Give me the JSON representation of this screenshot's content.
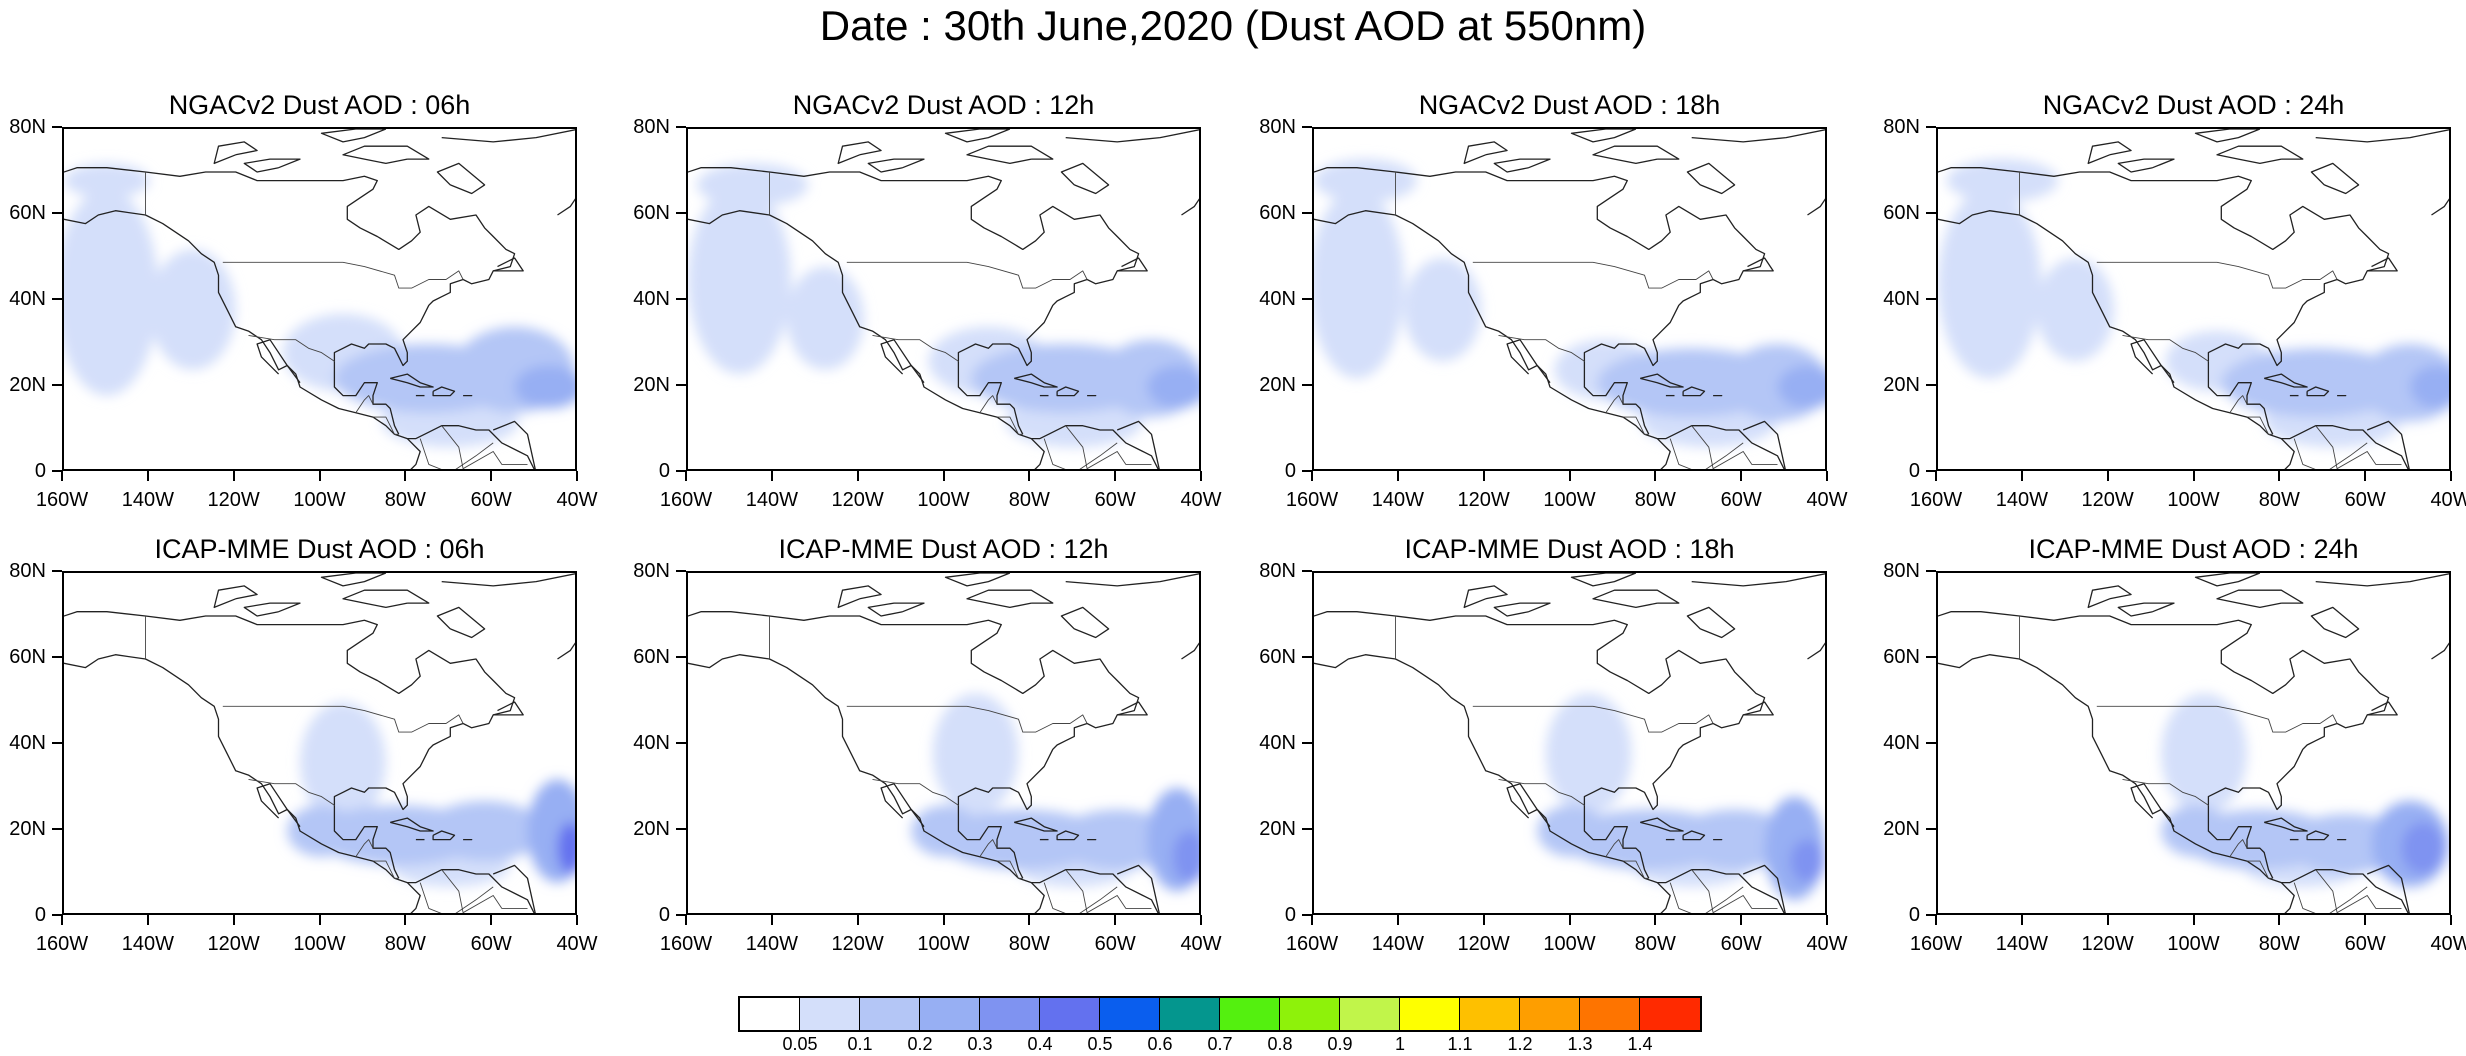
{
  "title": "Date : 30th June,2020 (Dust AOD at 550nm)",
  "lat_labels": [
    "80N",
    "60N",
    "40N",
    "20N",
    "0"
  ],
  "lat_values": [
    80,
    60,
    40,
    20,
    0
  ],
  "lon_labels": [
    "160W",
    "140W",
    "120W",
    "100W",
    "80W",
    "60W",
    "40W"
  ],
  "lon_values": [
    -160,
    -140,
    -120,
    -100,
    -80,
    -60,
    -40
  ],
  "domain": {
    "lon_range": [
      -160,
      -40
    ],
    "lat_range": [
      0,
      80
    ]
  },
  "colorbar": {
    "colors": [
      "#ffffff",
      "#d4dffa",
      "#b4c6f6",
      "#97aff3",
      "#7f93f1",
      "#6371ef",
      "#0a5eee",
      "#04968e",
      "#54f00f",
      "#8ef20a",
      "#c1f54a",
      "#feff00",
      "#fec000",
      "#fe9e00",
      "#fe7400",
      "#ff2a00"
    ],
    "labels": [
      "0.05",
      "0.1",
      "0.2",
      "0.3",
      "0.4",
      "0.5",
      "0.6",
      "0.7",
      "0.8",
      "0.9",
      "1",
      "1.1",
      "1.2",
      "1.3",
      "1.4"
    ]
  },
  "panels": [
    {
      "title": "NGACv2 Dust AOD : 06h",
      "model": "NGACv2",
      "hour": "06h",
      "blobs": [
        {
          "lon": -150,
          "lat": 42,
          "rx": 12,
          "ry": 24,
          "level": 1
        },
        {
          "lon": -130,
          "lat": 38,
          "rx": 10,
          "ry": 14,
          "level": 1
        },
        {
          "lon": -75,
          "lat": 22,
          "rx": 22,
          "ry": 8,
          "level": 2
        },
        {
          "lon": -55,
          "lat": 24,
          "rx": 14,
          "ry": 10,
          "level": 2
        },
        {
          "lon": -47,
          "lat": 20,
          "rx": 8,
          "ry": 5,
          "level": 3
        },
        {
          "lon": -95,
          "lat": 28,
          "rx": 14,
          "ry": 9,
          "level": 1
        },
        {
          "lon": -150,
          "lat": 68,
          "rx": 10,
          "ry": 4,
          "level": 1
        },
        {
          "lon": -70,
          "lat": 12,
          "rx": 16,
          "ry": 6,
          "level": 1
        }
      ]
    },
    {
      "title": "NGACv2 Dust AOD : 12h",
      "model": "NGACv2",
      "hour": "12h",
      "blobs": [
        {
          "lon": -148,
          "lat": 45,
          "rx": 12,
          "ry": 22,
          "level": 1
        },
        {
          "lon": -128,
          "lat": 36,
          "rx": 9,
          "ry": 12,
          "level": 1
        },
        {
          "lon": -72,
          "lat": 22,
          "rx": 22,
          "ry": 8,
          "level": 2
        },
        {
          "lon": -52,
          "lat": 22,
          "rx": 12,
          "ry": 9,
          "level": 2
        },
        {
          "lon": -46,
          "lat": 20,
          "rx": 7,
          "ry": 5,
          "level": 3
        },
        {
          "lon": -90,
          "lat": 26,
          "rx": 14,
          "ry": 8,
          "level": 1
        },
        {
          "lon": -145,
          "lat": 67,
          "rx": 13,
          "ry": 5,
          "level": 1
        },
        {
          "lon": -70,
          "lat": 12,
          "rx": 16,
          "ry": 6,
          "level": 1
        }
      ]
    },
    {
      "title": "NGACv2 Dust AOD : 18h",
      "model": "NGACv2",
      "hour": "18h",
      "blobs": [
        {
          "lon": -150,
          "lat": 44,
          "rx": 11,
          "ry": 22,
          "level": 1
        },
        {
          "lon": -130,
          "lat": 38,
          "rx": 9,
          "ry": 12,
          "level": 1
        },
        {
          "lon": -72,
          "lat": 21,
          "rx": 22,
          "ry": 8,
          "level": 2
        },
        {
          "lon": -52,
          "lat": 21,
          "rx": 12,
          "ry": 9,
          "level": 2
        },
        {
          "lon": -45,
          "lat": 20,
          "rx": 7,
          "ry": 5,
          "level": 3
        },
        {
          "lon": -92,
          "lat": 24,
          "rx": 12,
          "ry": 7,
          "level": 1
        },
        {
          "lon": -148,
          "lat": 68,
          "rx": 12,
          "ry": 5,
          "level": 1
        },
        {
          "lon": -68,
          "lat": 12,
          "rx": 16,
          "ry": 6,
          "level": 1
        }
      ]
    },
    {
      "title": "NGACv2 Dust AOD : 24h",
      "model": "NGACv2",
      "hour": "24h",
      "blobs": [
        {
          "lon": -148,
          "lat": 44,
          "rx": 12,
          "ry": 22,
          "level": 1
        },
        {
          "lon": -128,
          "lat": 38,
          "rx": 9,
          "ry": 12,
          "level": 1
        },
        {
          "lon": -72,
          "lat": 21,
          "rx": 22,
          "ry": 8,
          "level": 2
        },
        {
          "lon": -50,
          "lat": 21,
          "rx": 12,
          "ry": 9,
          "level": 2
        },
        {
          "lon": -44,
          "lat": 20,
          "rx": 6,
          "ry": 5,
          "level": 3
        },
        {
          "lon": -95,
          "lat": 26,
          "rx": 12,
          "ry": 7,
          "level": 1
        },
        {
          "lon": -145,
          "lat": 68,
          "rx": 13,
          "ry": 5,
          "level": 1
        },
        {
          "lon": -68,
          "lat": 12,
          "rx": 16,
          "ry": 6,
          "level": 1
        }
      ]
    },
    {
      "title": "ICAP-MME Dust AOD : 06h",
      "model": "ICAP-MME",
      "hour": "06h",
      "blobs": [
        {
          "lon": -95,
          "lat": 36,
          "rx": 10,
          "ry": 14,
          "level": 1
        },
        {
          "lon": -82,
          "lat": 19,
          "rx": 20,
          "ry": 7,
          "level": 2
        },
        {
          "lon": -62,
          "lat": 20,
          "rx": 14,
          "ry": 7,
          "level": 2
        },
        {
          "lon": -45,
          "lat": 20,
          "rx": 7,
          "ry": 12,
          "level": 3
        },
        {
          "lon": -42,
          "lat": 16,
          "rx": 3,
          "ry": 6,
          "level": 5
        },
        {
          "lon": -100,
          "lat": 20,
          "rx": 8,
          "ry": 6,
          "level": 2
        },
        {
          "lon": -70,
          "lat": 12,
          "rx": 14,
          "ry": 5,
          "level": 1
        }
      ]
    },
    {
      "title": "ICAP-MME Dust AOD : 12h",
      "model": "ICAP-MME",
      "hour": "12h",
      "blobs": [
        {
          "lon": -93,
          "lat": 38,
          "rx": 10,
          "ry": 14,
          "level": 1
        },
        {
          "lon": -82,
          "lat": 18,
          "rx": 20,
          "ry": 7,
          "level": 2
        },
        {
          "lon": -60,
          "lat": 18,
          "rx": 14,
          "ry": 7,
          "level": 2
        },
        {
          "lon": -46,
          "lat": 18,
          "rx": 7,
          "ry": 12,
          "level": 3
        },
        {
          "lon": -43,
          "lat": 14,
          "rx": 4,
          "ry": 6,
          "level": 4
        },
        {
          "lon": -100,
          "lat": 20,
          "rx": 8,
          "ry": 6,
          "level": 2
        },
        {
          "lon": -70,
          "lat": 12,
          "rx": 14,
          "ry": 5,
          "level": 1
        }
      ]
    },
    {
      "title": "ICAP-MME Dust AOD : 18h",
      "model": "ICAP-MME",
      "hour": "18h",
      "blobs": [
        {
          "lon": -96,
          "lat": 38,
          "rx": 10,
          "ry": 14,
          "level": 1
        },
        {
          "lon": -82,
          "lat": 18,
          "rx": 20,
          "ry": 7,
          "level": 2
        },
        {
          "lon": -62,
          "lat": 18,
          "rx": 14,
          "ry": 7,
          "level": 2
        },
        {
          "lon": -48,
          "lat": 16,
          "rx": 7,
          "ry": 12,
          "level": 3
        },
        {
          "lon": -45,
          "lat": 13,
          "rx": 4,
          "ry": 5,
          "level": 4
        },
        {
          "lon": -100,
          "lat": 20,
          "rx": 8,
          "ry": 6,
          "level": 2
        },
        {
          "lon": -72,
          "lat": 12,
          "rx": 14,
          "ry": 5,
          "level": 1
        }
      ]
    },
    {
      "title": "ICAP-MME Dust AOD : 24h",
      "model": "ICAP-MME",
      "hour": "24h",
      "blobs": [
        {
          "lon": -98,
          "lat": 38,
          "rx": 10,
          "ry": 14,
          "level": 1
        },
        {
          "lon": -85,
          "lat": 18,
          "rx": 18,
          "ry": 7,
          "level": 2
        },
        {
          "lon": -65,
          "lat": 17,
          "rx": 14,
          "ry": 7,
          "level": 2
        },
        {
          "lon": -50,
          "lat": 17,
          "rx": 9,
          "ry": 10,
          "level": 3
        },
        {
          "lon": -47,
          "lat": 16,
          "rx": 5,
          "ry": 6,
          "level": 4
        },
        {
          "lon": -100,
          "lat": 20,
          "rx": 8,
          "ry": 6,
          "level": 2
        },
        {
          "lon": -75,
          "lat": 12,
          "rx": 14,
          "ry": 5,
          "level": 1
        }
      ]
    }
  ],
  "coastlines": [
    [
      [
        -165,
        60
      ],
      [
        -160,
        59
      ],
      [
        -155,
        58
      ],
      [
        -152,
        60
      ],
      [
        -148,
        61
      ],
      [
        -141,
        60
      ],
      [
        -137,
        58
      ],
      [
        -134,
        56
      ],
      [
        -131,
        54
      ],
      [
        -128,
        51
      ],
      [
        -125,
        49
      ],
      [
        -124,
        46
      ],
      [
        -124,
        42
      ],
      [
        -122,
        38
      ],
      [
        -120,
        34
      ],
      [
        -117,
        33
      ],
      [
        -114,
        31
      ],
      [
        -112,
        28
      ],
      [
        -110,
        24
      ],
      [
        -108,
        25
      ],
      [
        -106,
        23
      ],
      [
        -105,
        20
      ],
      [
        -100,
        17
      ],
      [
        -96,
        15
      ],
      [
        -92,
        14
      ],
      [
        -88,
        13
      ],
      [
        -85,
        11
      ],
      [
        -83,
        9
      ],
      [
        -80,
        8
      ],
      [
        -78,
        8
      ],
      [
        -76,
        9
      ],
      [
        -72,
        11
      ],
      [
        -68,
        11
      ],
      [
        -64,
        10
      ],
      [
        -61,
        10
      ],
      [
        -58,
        7
      ],
      [
        -54,
        5
      ],
      [
        -52,
        4
      ],
      [
        -51,
        2
      ],
      [
        -50,
        0
      ]
    ],
    [
      [
        -97,
        26
      ],
      [
        -97,
        28
      ],
      [
        -95,
        29
      ],
      [
        -93,
        30
      ],
      [
        -90,
        29
      ],
      [
        -89,
        30
      ],
      [
        -85,
        30
      ],
      [
        -83,
        29
      ],
      [
        -82,
        27
      ],
      [
        -81,
        25
      ],
      [
        -80,
        26
      ],
      [
        -80,
        28
      ],
      [
        -81,
        31
      ],
      [
        -79,
        33
      ],
      [
        -77,
        35
      ],
      [
        -76,
        37
      ],
      [
        -75,
        39
      ],
      [
        -74,
        40
      ],
      [
        -72,
        41
      ],
      [
        -70,
        42
      ],
      [
        -70,
        44
      ],
      [
        -67,
        45
      ],
      [
        -65,
        44
      ],
      [
        -61,
        45
      ],
      [
        -60,
        47
      ],
      [
        -56,
        48
      ],
      [
        -55,
        51
      ],
      [
        -57,
        52
      ],
      [
        -60,
        55
      ],
      [
        -62,
        57
      ],
      [
        -64,
        60
      ],
      [
        -70,
        59
      ],
      [
        -75,
        62
      ],
      [
        -78,
        60
      ],
      [
        -77,
        56
      ],
      [
        -79,
        54
      ],
      [
        -82,
        52
      ],
      [
        -87,
        55
      ],
      [
        -91,
        57
      ],
      [
        -94,
        59
      ],
      [
        -94,
        62
      ],
      [
        -91,
        64
      ],
      [
        -88,
        66
      ],
      [
        -87,
        68
      ],
      [
        -90,
        69
      ],
      [
        -95,
        68
      ],
      [
        -100,
        68
      ],
      [
        -105,
        68
      ],
      [
        -110,
        68
      ],
      [
        -115,
        68
      ],
      [
        -120,
        70
      ],
      [
        -127,
        70
      ],
      [
        -133,
        69
      ],
      [
        -141,
        70
      ],
      [
        -150,
        71
      ],
      [
        -157,
        71
      ],
      [
        -163,
        69
      ],
      [
        -166,
        67
      ],
      [
        -162,
        65
      ],
      [
        -165,
        63
      ],
      [
        -165,
        60
      ]
    ],
    [
      [
        -97,
        26
      ],
      [
        -97,
        23
      ],
      [
        -97,
        20
      ],
      [
        -95,
        18
      ],
      [
        -92,
        18
      ],
      [
        -90,
        21
      ],
      [
        -87,
        21
      ],
      [
        -88,
        18
      ],
      [
        -88,
        16
      ],
      [
        -85,
        16
      ],
      [
        -84,
        15
      ],
      [
        -83,
        11
      ],
      [
        -82,
        9
      ]
    ],
    [
      [
        -105,
        21
      ],
      [
        -108,
        25
      ],
      [
        -112,
        31
      ],
      [
        -115,
        30
      ],
      [
        -114,
        27
      ],
      [
        -111,
        24
      ],
      [
        -110,
        23
      ]
    ],
    [
      [
        -84,
        22
      ],
      [
        -80,
        23
      ],
      [
        -77,
        21
      ],
      [
        -74,
        20
      ],
      [
        -77,
        20
      ],
      [
        -80,
        21
      ],
      [
        -84,
        22
      ]
    ],
    [
      [
        -74,
        19
      ],
      [
        -72,
        20
      ],
      [
        -69,
        19
      ],
      [
        -70,
        18
      ],
      [
        -74,
        18
      ],
      [
        -74,
        19
      ]
    ],
    [
      [
        -67,
        18
      ],
      [
        -65,
        18
      ],
      [
        -66,
        18
      ]
    ],
    [
      [
        -78,
        18
      ],
      [
        -77,
        18
      ],
      [
        -76,
        18
      ]
    ],
    [
      [
        -80,
        73
      ],
      [
        -85,
        72
      ],
      [
        -90,
        73
      ],
      [
        -95,
        74
      ],
      [
        -90,
        76
      ],
      [
        -80,
        76
      ],
      [
        -75,
        73
      ],
      [
        -80,
        73
      ]
    ],
    [
      [
        -110,
        71
      ],
      [
        -115,
        70
      ],
      [
        -118,
        72
      ],
      [
        -112,
        73
      ],
      [
        -105,
        73
      ],
      [
        -110,
        71
      ]
    ],
    [
      [
        -120,
        74
      ],
      [
        -125,
        72
      ],
      [
        -124,
        76
      ],
      [
        -118,
        77
      ],
      [
        -115,
        75
      ],
      [
        -120,
        74
      ]
    ],
    [
      [
        -70,
        67
      ],
      [
        -73,
        70
      ],
      [
        -68,
        72
      ],
      [
        -62,
        67
      ],
      [
        -65,
        65
      ],
      [
        -70,
        67
      ]
    ],
    [
      [
        -85,
        80
      ],
      [
        -90,
        78
      ],
      [
        -95,
        77
      ],
      [
        -100,
        79
      ],
      [
        -92,
        80
      ],
      [
        -85,
        80
      ]
    ],
    [
      [
        -72,
        78
      ],
      [
        -60,
        77
      ],
      [
        -50,
        78
      ],
      [
        -40,
        80
      ]
    ],
    [
      [
        -45,
        60
      ],
      [
        -42,
        62
      ],
      [
        -40,
        65
      ]
    ],
    [
      [
        -60,
        47
      ],
      [
        -53,
        47
      ],
      [
        -55,
        50
      ],
      [
        -59,
        48
      ]
    ],
    [
      [
        -80,
        8
      ],
      [
        -77,
        5
      ],
      [
        -78,
        2
      ],
      [
        -80,
        0
      ]
    ],
    [
      [
        -60,
        10
      ],
      [
        -55,
        12
      ],
      [
        -52,
        9
      ],
      [
        -50,
        0
      ]
    ]
  ],
  "borders": [
    [
      [
        -141,
        70
      ],
      [
        -141,
        60
      ]
    ],
    [
      [
        -123,
        49
      ],
      [
        -95,
        49
      ],
      [
        -90,
        48
      ],
      [
        -83,
        46
      ],
      [
        -82,
        43
      ],
      [
        -79,
        43
      ],
      [
        -75,
        45
      ],
      [
        -71,
        45
      ],
      [
        -68,
        47
      ],
      [
        -67,
        45
      ]
    ],
    [
      [
        -117,
        32
      ],
      [
        -111,
        31
      ],
      [
        -106,
        31
      ],
      [
        -103,
        29
      ],
      [
        -100,
        28
      ],
      [
        -97,
        26
      ]
    ],
    [
      [
        -92,
        14
      ],
      [
        -90,
        17
      ],
      [
        -89,
        18
      ],
      [
        -88,
        16
      ]
    ],
    [
      [
        -88,
        13
      ],
      [
        -85,
        13
      ],
      [
        -84,
        11
      ],
      [
        -83,
        9
      ],
      [
        -82,
        9
      ]
    ],
    [
      [
        -72,
        11
      ],
      [
        -68,
        6
      ],
      [
        -67,
        1
      ],
      [
        -60,
        5
      ],
      [
        -58,
        2
      ],
      [
        -52,
        2
      ]
    ],
    [
      [
        -77,
        8
      ],
      [
        -75,
        2
      ],
      [
        -70,
        0
      ],
      [
        -64,
        4
      ],
      [
        -60,
        7
      ]
    ]
  ]
}
